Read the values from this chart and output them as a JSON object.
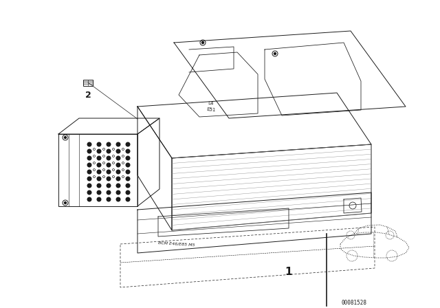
{
  "background_color": "#ffffff",
  "line_color": "#1a1a1a",
  "label_1": "1",
  "label_2": "2",
  "watermark": "00081528",
  "fig_width": 6.4,
  "fig_height": 4.48,
  "dpi": 100,
  "label_text": "BCM E46/E85 M5"
}
